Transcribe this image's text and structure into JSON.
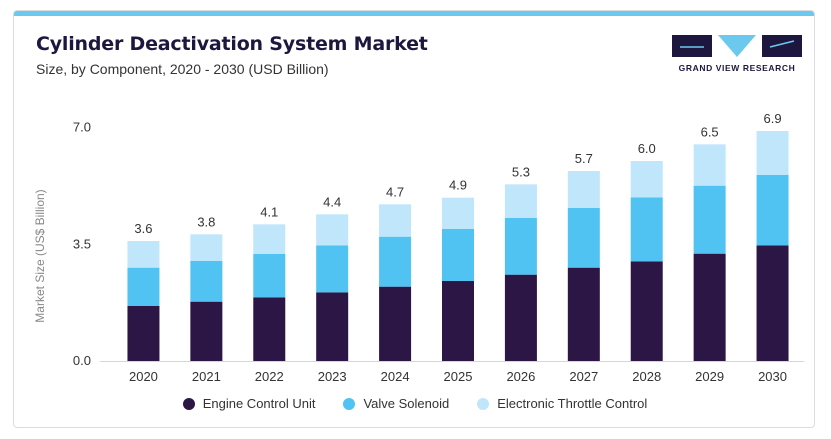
{
  "header": {
    "title": "Cylinder Deactivation System Market",
    "subtitle": "Size, by Component, 2020 - 2030 (USD Billion)"
  },
  "brand": {
    "name": "GRAND VIEW RESEARCH",
    "logo_color": "#1d1740",
    "accent_color": "#6cc9ee"
  },
  "chart_data": {
    "type": "bar",
    "stacked": true,
    "title": "Cylinder Deactivation System Market",
    "subtitle": "Size, by Component, 2020 - 2030 (USD Billion)",
    "xlabel": "",
    "ylabel": "Market Size (US$ Billion)",
    "ylim": [
      0,
      7.5
    ],
    "yticks": [
      0.0,
      3.5,
      7.0
    ],
    "ytick_labels": [
      "0.0",
      "3.5",
      "7.0"
    ],
    "categories": [
      "2020",
      "2021",
      "2022",
      "2023",
      "2024",
      "2025",
      "2026",
      "2027",
      "2028",
      "2029",
      "2030"
    ],
    "totals": [
      3.6,
      3.8,
      4.1,
      4.4,
      4.7,
      4.9,
      5.3,
      5.7,
      6.0,
      6.5,
      6.9
    ],
    "total_labels": [
      "3.6",
      "3.8",
      "4.1",
      "4.4",
      "4.7",
      "4.9",
      "5.3",
      "5.7",
      "6.0",
      "6.5",
      "6.9"
    ],
    "series": [
      {
        "name": "Engine Control Unit",
        "color": "#2c1646",
        "values": [
          1.65,
          1.78,
          1.91,
          2.06,
          2.23,
          2.4,
          2.59,
          2.8,
          2.99,
          3.22,
          3.47
        ]
      },
      {
        "name": "Valve Solenoid",
        "color": "#50c3f2",
        "values": [
          1.15,
          1.22,
          1.3,
          1.41,
          1.5,
          1.56,
          1.7,
          1.79,
          1.92,
          2.04,
          2.11
        ]
      },
      {
        "name": "Electronic Throttle Control",
        "color": "#bfe6fa",
        "values": [
          0.8,
          0.8,
          0.89,
          0.93,
          0.97,
          0.94,
          1.01,
          1.11,
          1.09,
          1.24,
          1.32
        ]
      }
    ],
    "grid": false,
    "legend": "bottom"
  }
}
